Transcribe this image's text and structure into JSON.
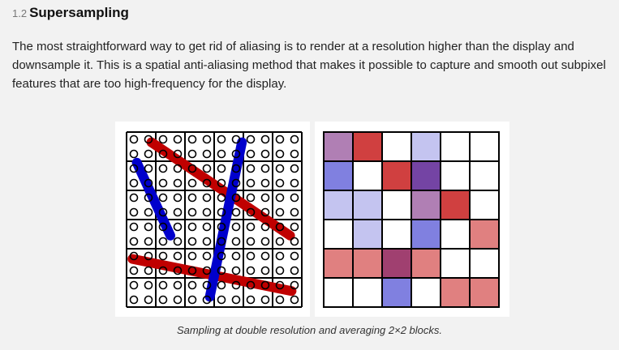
{
  "section": {
    "number": "1.2",
    "title": "Supersampling"
  },
  "paragraph": "The most straightforward way to get rid of aliasing is to render at a resolution higher than the display and downsample it. This is a spatial anti-aliasing method that makes it possible to capture and smooth out subpixel features that are too high-frequency for the display.",
  "figure": {
    "caption": "Sampling at double resolution and averaging 2×2 blocks.",
    "colors": {
      "red_stroke": "#c00000",
      "blue_stroke": "#0000cc",
      "white": "#ffffff"
    },
    "output_grid": [
      [
        "#b07fb4",
        "#d04040",
        "#ffffff",
        "#c4c4f0",
        "#ffffff",
        "#ffffff"
      ],
      [
        "#8080e0",
        "#ffffff",
        "#d04040",
        "#7444a4",
        "#ffffff",
        "#ffffff"
      ],
      [
        "#c4c4f0",
        "#c4c4f0",
        "#ffffff",
        "#b07fb4",
        "#d04040",
        "#ffffff"
      ],
      [
        "#ffffff",
        "#c4c4f0",
        "#ffffff",
        "#8080e0",
        "#ffffff",
        "#e08080"
      ],
      [
        "#e08080",
        "#e08080",
        "#a04070",
        "#e08080",
        "#ffffff",
        "#ffffff"
      ],
      [
        "#ffffff",
        "#ffffff",
        "#8080e0",
        "#ffffff",
        "#e08080",
        "#e08080"
      ]
    ]
  }
}
